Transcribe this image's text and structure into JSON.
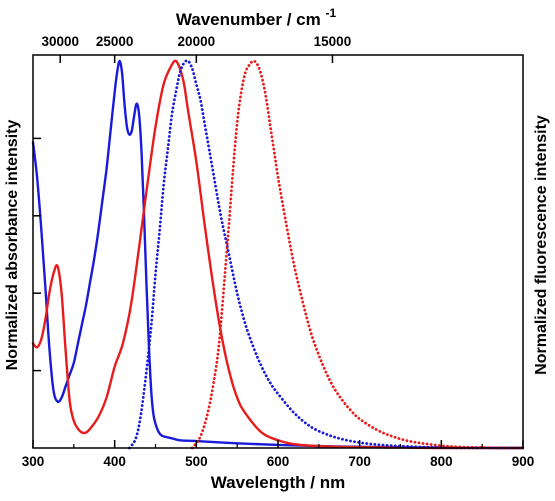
{
  "chart_data": {
    "type": "line",
    "xlabel": "Wavelength / nm",
    "x2label": "Wavenumber / cm",
    "x2label_superscript": "-1",
    "ylabel_left": "Normalized absorbance intensity",
    "ylabel_right": "Normalized fluorescence intensity",
    "xlim": [
      300,
      900
    ],
    "ylim": [
      0,
      1.0
    ],
    "xticks": [
      300,
      400,
      500,
      600,
      700,
      800,
      900
    ],
    "xtick_labels": [
      "300",
      "400",
      "500",
      "600",
      "700",
      "800",
      "900"
    ],
    "x2ticks": [
      30000,
      25000,
      20000,
      15000
    ],
    "x2tick_labels": [
      "30000",
      "25000",
      "20000",
      "15000"
    ],
    "grid": false,
    "legend": "none",
    "series": [
      {
        "color": "#1a1adb",
        "style": "solid",
        "x": [
          300,
          305,
          310,
          315,
          320,
          325,
          330,
          335,
          340,
          345,
          350,
          355,
          360,
          365,
          370,
          375,
          380,
          385,
          390,
          395,
          400,
          403,
          406,
          409,
          412,
          415,
          418,
          421,
          424,
          427,
          430,
          433,
          436,
          439,
          442,
          445,
          448,
          452,
          456,
          460,
          470,
          480,
          500,
          550,
          600,
          650,
          700,
          750,
          800,
          900
        ],
        "y": [
          0.79,
          0.7,
          0.57,
          0.42,
          0.26,
          0.15,
          0.12,
          0.13,
          0.16,
          0.19,
          0.22,
          0.27,
          0.32,
          0.37,
          0.43,
          0.49,
          0.56,
          0.64,
          0.72,
          0.82,
          0.92,
          0.97,
          1.0,
          0.97,
          0.89,
          0.83,
          0.81,
          0.82,
          0.86,
          0.89,
          0.86,
          0.76,
          0.6,
          0.42,
          0.26,
          0.14,
          0.08,
          0.05,
          0.035,
          0.03,
          0.025,
          0.02,
          0.018,
          0.012,
          0.008,
          0.005,
          0.003,
          0.002,
          0.001,
          0.0
        ]
      },
      {
        "color": "#e81c1c",
        "style": "solid",
        "x": [
          300,
          305,
          310,
          315,
          320,
          325,
          330,
          335,
          340,
          345,
          350,
          355,
          360,
          365,
          370,
          380,
          390,
          400,
          410,
          420,
          430,
          440,
          450,
          460,
          470,
          475,
          480,
          485,
          490,
          500,
          510,
          520,
          530,
          540,
          550,
          560,
          580,
          600,
          620,
          650,
          700,
          750,
          800,
          900
        ],
        "y": [
          0.27,
          0.26,
          0.28,
          0.33,
          0.4,
          0.45,
          0.47,
          0.4,
          0.25,
          0.12,
          0.07,
          0.05,
          0.04,
          0.04,
          0.05,
          0.08,
          0.13,
          0.21,
          0.27,
          0.37,
          0.52,
          0.68,
          0.83,
          0.94,
          0.99,
          1.0,
          0.98,
          0.94,
          0.87,
          0.74,
          0.58,
          0.43,
          0.3,
          0.2,
          0.13,
          0.09,
          0.04,
          0.02,
          0.01,
          0.005,
          0.002,
          0.001,
          0.0,
          0.0
        ]
      },
      {
        "color": "#1a1adb",
        "style": "dotted",
        "x": [
          418,
          425,
          430,
          435,
          440,
          445,
          450,
          455,
          460,
          465,
          470,
          475,
          480,
          485,
          490,
          495,
          500,
          505,
          510,
          515,
          520,
          530,
          540,
          550,
          560,
          570,
          580,
          590,
          600,
          620,
          640,
          660,
          680,
          700,
          720,
          740,
          760,
          780,
          800,
          850,
          900
        ],
        "y": [
          0.0,
          0.02,
          0.06,
          0.13,
          0.22,
          0.32,
          0.45,
          0.56,
          0.68,
          0.77,
          0.86,
          0.92,
          0.97,
          0.995,
          1.0,
          0.98,
          0.94,
          0.9,
          0.84,
          0.78,
          0.72,
          0.6,
          0.5,
          0.4,
          0.32,
          0.26,
          0.21,
          0.17,
          0.14,
          0.09,
          0.055,
          0.035,
          0.022,
          0.014,
          0.009,
          0.006,
          0.004,
          0.002,
          0.001,
          0.0,
          0.0
        ]
      },
      {
        "color": "#e81c1c",
        "style": "dotted",
        "x": [
          495,
          505,
          515,
          525,
          530,
          535,
          540,
          545,
          550,
          555,
          560,
          565,
          570,
          575,
          580,
          585,
          590,
          595,
          600,
          610,
          620,
          630,
          640,
          650,
          660,
          670,
          680,
          690,
          700,
          720,
          740,
          760,
          780,
          800,
          820,
          850,
          880,
          900
        ],
        "y": [
          0.0,
          0.03,
          0.1,
          0.22,
          0.32,
          0.45,
          0.58,
          0.72,
          0.84,
          0.92,
          0.97,
          0.99,
          1.0,
          0.99,
          0.96,
          0.91,
          0.84,
          0.77,
          0.7,
          0.58,
          0.47,
          0.38,
          0.3,
          0.24,
          0.19,
          0.15,
          0.12,
          0.095,
          0.075,
          0.048,
          0.03,
          0.018,
          0.011,
          0.006,
          0.003,
          0.001,
          0.0,
          0.0
        ]
      }
    ]
  }
}
